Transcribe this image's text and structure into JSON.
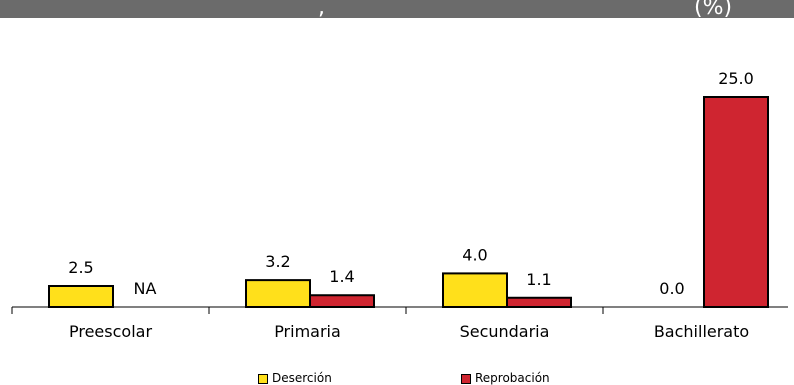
{
  "header": {
    "fragment_left": ",",
    "fragment_right": "(%)"
  },
  "colors": {
    "band": "#6b6b6b",
    "desercion": "#ffe01b",
    "reprobacion": "#cf2530"
  },
  "chart_data": {
    "type": "bar",
    "categories": [
      "Preescolar",
      "Primaria",
      "Secundaria",
      "Bachillerato"
    ],
    "series": [
      {
        "name": "Deserción",
        "values": [
          2.5,
          3.2,
          4.0,
          0.0
        ],
        "labels": [
          "2.5",
          "3.2",
          "4.0",
          "0.0"
        ]
      },
      {
        "name": "Reprobación",
        "values": [
          null,
          1.4,
          1.1,
          25.0
        ],
        "labels": [
          "NA",
          "1.4",
          "1.1",
          "25.0"
        ]
      }
    ],
    "ylim": [
      0,
      25
    ],
    "grid": false,
    "legend_position": "bottom"
  }
}
